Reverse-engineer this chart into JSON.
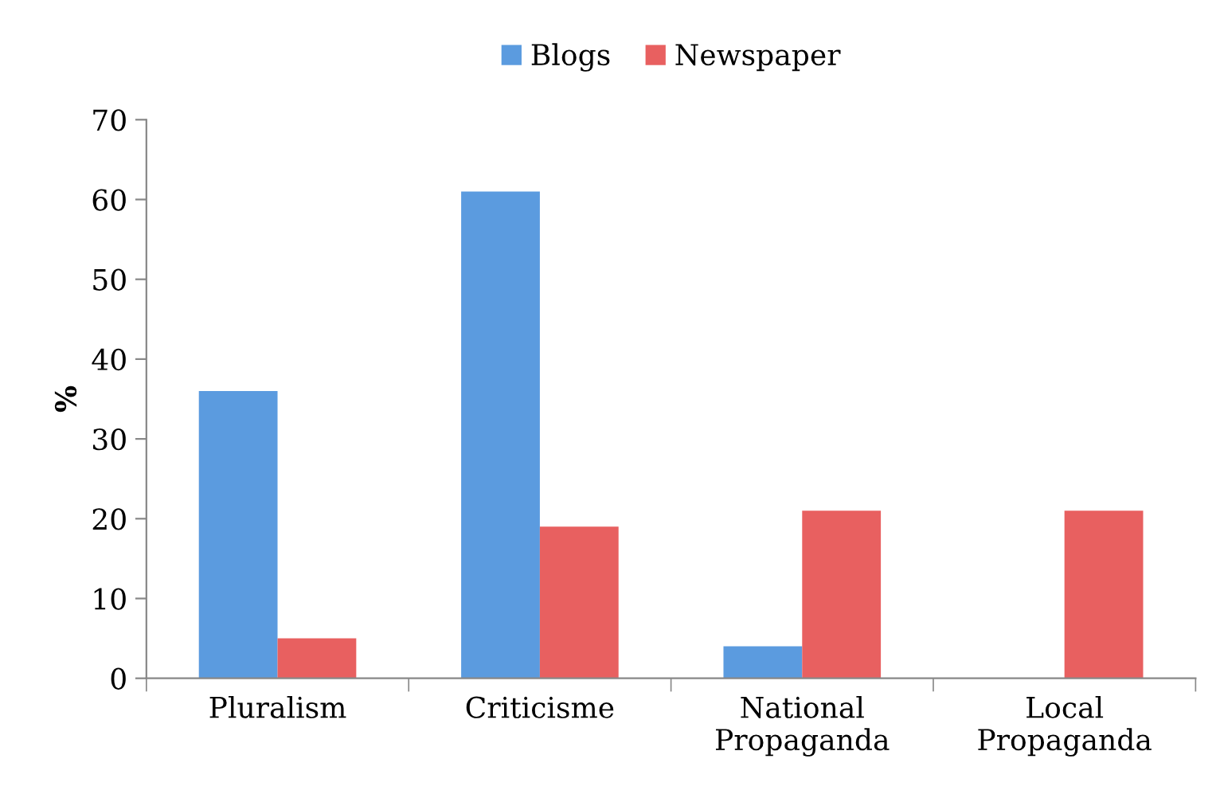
{
  "chart_data": {
    "type": "bar",
    "ylabel": "%",
    "categories": [
      "Pluralism",
      "Criticisme",
      "National\nPropaganda",
      "Local\nPropaganda"
    ],
    "series": [
      {
        "name": "Blogs",
        "color": "#5b9bdf",
        "values": [
          36,
          61,
          4,
          0
        ]
      },
      {
        "name": "Newspaper",
        "color": "#e86060",
        "values": [
          5,
          19,
          21,
          21
        ]
      }
    ],
    "ylim": [
      0,
      70
    ],
    "yticks": [
      0,
      10,
      20,
      30,
      40,
      50,
      60,
      70
    ],
    "grid": false,
    "legend": "top"
  }
}
